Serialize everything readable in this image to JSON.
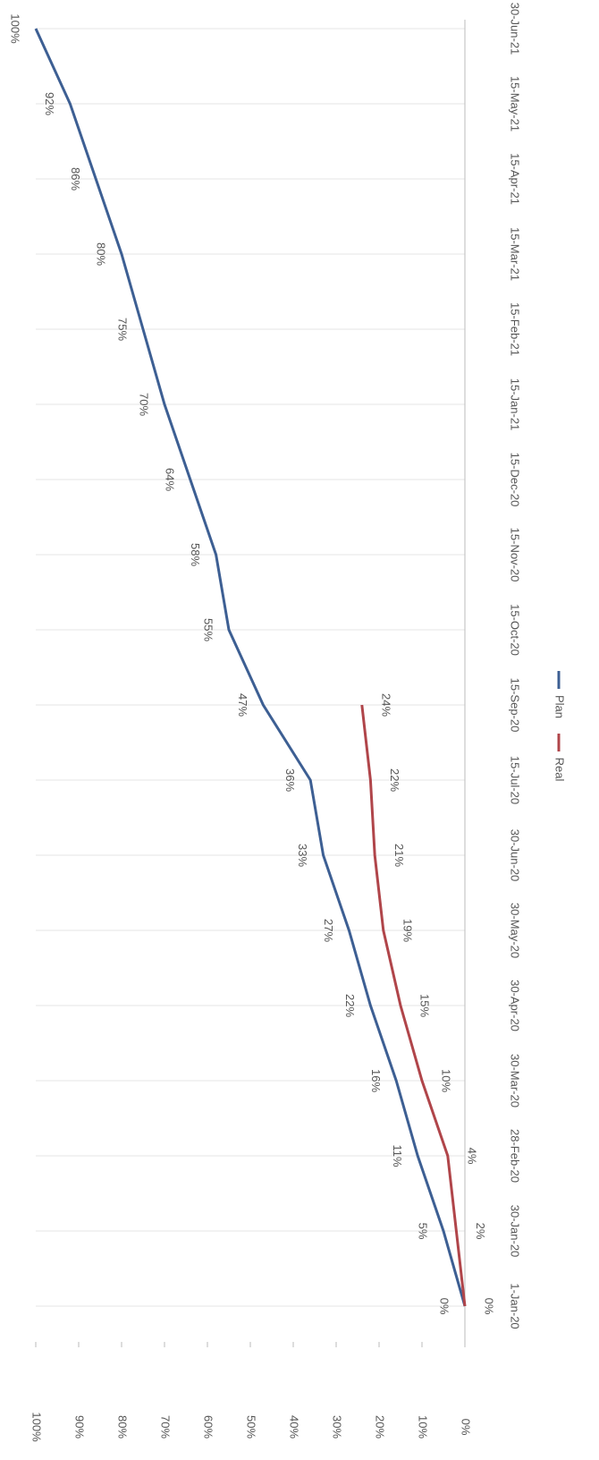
{
  "chart_data": {
    "type": "line",
    "categories": [
      "1-Jan-20",
      "30-Jan-20",
      "28-Feb-20",
      "30-Mar-20",
      "30-Apr-20",
      "30-May-20",
      "30-Jun-20",
      "15-Jul-20",
      "15-Sep-20",
      "15-Oct-20",
      "15-Nov-20",
      "15-Dec-20",
      "15-Jan-21",
      "15-Feb-21",
      "15-Mar-21",
      "15-Apr-21",
      "15-May-21",
      "30-Jun-21"
    ],
    "series": [
      {
        "name": "Plan",
        "color": "#3d5f93",
        "values": [
          0,
          5,
          11,
          16,
          22,
          27,
          33,
          36,
          47,
          55,
          58,
          64,
          70,
          75,
          80,
          86,
          92,
          100
        ],
        "value_labels": [
          "0%",
          "5%",
          "11%",
          "16%",
          "22%",
          "27%",
          "33%",
          "36%",
          "47%",
          "55%",
          "58%",
          "64%",
          "70%",
          "75%",
          "80%",
          "86%",
          "92%",
          "100%"
        ]
      },
      {
        "name": "Real",
        "color": "#b0454a",
        "values": [
          0,
          2,
          4,
          10,
          15,
          19,
          21,
          22,
          24,
          null,
          null,
          null,
          null,
          null,
          null,
          null,
          null,
          null
        ],
        "value_labels": [
          "0%",
          "2%",
          "4%",
          "10%",
          "15%",
          "19%",
          "21%",
          "22%",
          "24%",
          null,
          null,
          null,
          null,
          null,
          null,
          null,
          null,
          null
        ]
      }
    ],
    "ylim": [
      0,
      100
    ],
    "yticks": [
      {
        "value": 0,
        "label": "0%"
      },
      {
        "value": 10,
        "label": "10%"
      },
      {
        "value": 20,
        "label": "20%"
      },
      {
        "value": 30,
        "label": "30%"
      },
      {
        "value": 40,
        "label": "40%"
      },
      {
        "value": 50,
        "label": "50%"
      },
      {
        "value": 60,
        "label": "60%"
      },
      {
        "value": 70,
        "label": "70%"
      },
      {
        "value": 80,
        "label": "80%"
      },
      {
        "value": 90,
        "label": "90%"
      },
      {
        "value": 100,
        "label": "100%"
      }
    ],
    "legend": "bottom"
  }
}
